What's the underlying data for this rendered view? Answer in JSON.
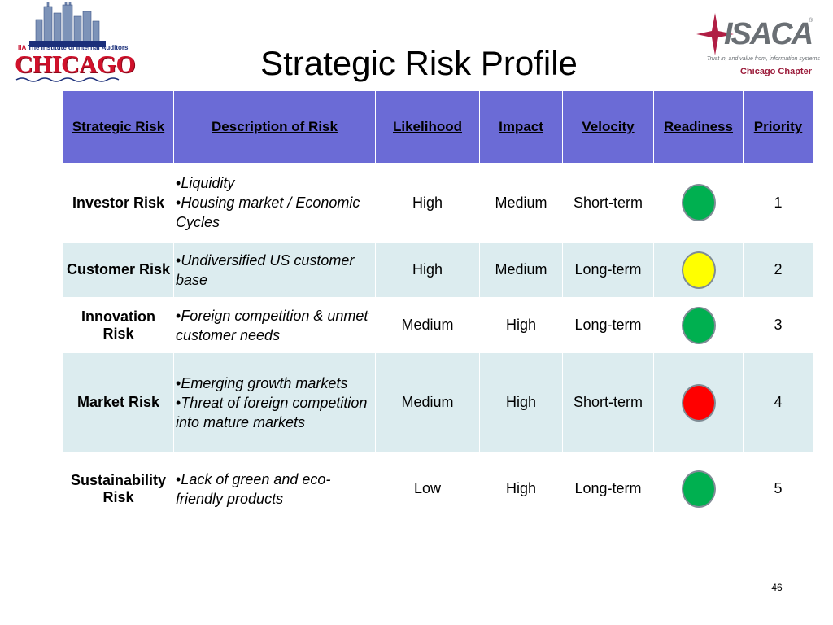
{
  "slide": {
    "title": "Strategic Risk Profile",
    "page_number": "46"
  },
  "logos": {
    "left": {
      "org_line": "The Institute of Internal Auditors",
      "city": "CHICAGO",
      "icon": "skyline-icon"
    },
    "right": {
      "name": "ISACA",
      "registered_mark": "®",
      "tagline": "Trust in, and value from, information systems",
      "chapter": "Chicago Chapter",
      "icon": "star-icon"
    }
  },
  "table": {
    "headers": [
      "Strategic Risk",
      "Description of Risk",
      "Likelihood",
      "Impact",
      "Velocity",
      "Readiness",
      "Priority"
    ],
    "rows": [
      {
        "risk": "Investor Risk",
        "description": [
          "Liquidity",
          "Housing market / Economic Cycles"
        ],
        "likelihood": "High",
        "impact": "Medium",
        "velocity": "Short-term",
        "readiness_color": "#00b050",
        "priority": "1"
      },
      {
        "risk": "Customer Risk",
        "description": [
          "Undiversified US customer base"
        ],
        "likelihood": "High",
        "impact": "Medium",
        "velocity": "Long-term",
        "readiness_color": "#ffff00",
        "priority": "2"
      },
      {
        "risk": "Innovation Risk",
        "description": [
          "Foreign competition & unmet  customer needs"
        ],
        "likelihood": "Medium",
        "impact": "High",
        "velocity": "Long-term",
        "readiness_color": "#00b050",
        "priority": "3"
      },
      {
        "risk": "Market Risk",
        "description": [
          "Emerging growth markets",
          "Threat of foreign competition into mature markets"
        ],
        "likelihood": "Medium",
        "impact": "High",
        "velocity": "Short-term",
        "readiness_color": "#ff0000",
        "priority": "4"
      },
      {
        "risk": "Sustainability Risk",
        "description": [
          "Lack of green and eco-friendly products"
        ],
        "likelihood": "Low",
        "impact": "High",
        "velocity": "Long-term",
        "readiness_color": "#00b050",
        "priority": "5"
      }
    ]
  },
  "colors": {
    "header_bg": "#6b6bd6",
    "row_tint": "#dcecef"
  }
}
